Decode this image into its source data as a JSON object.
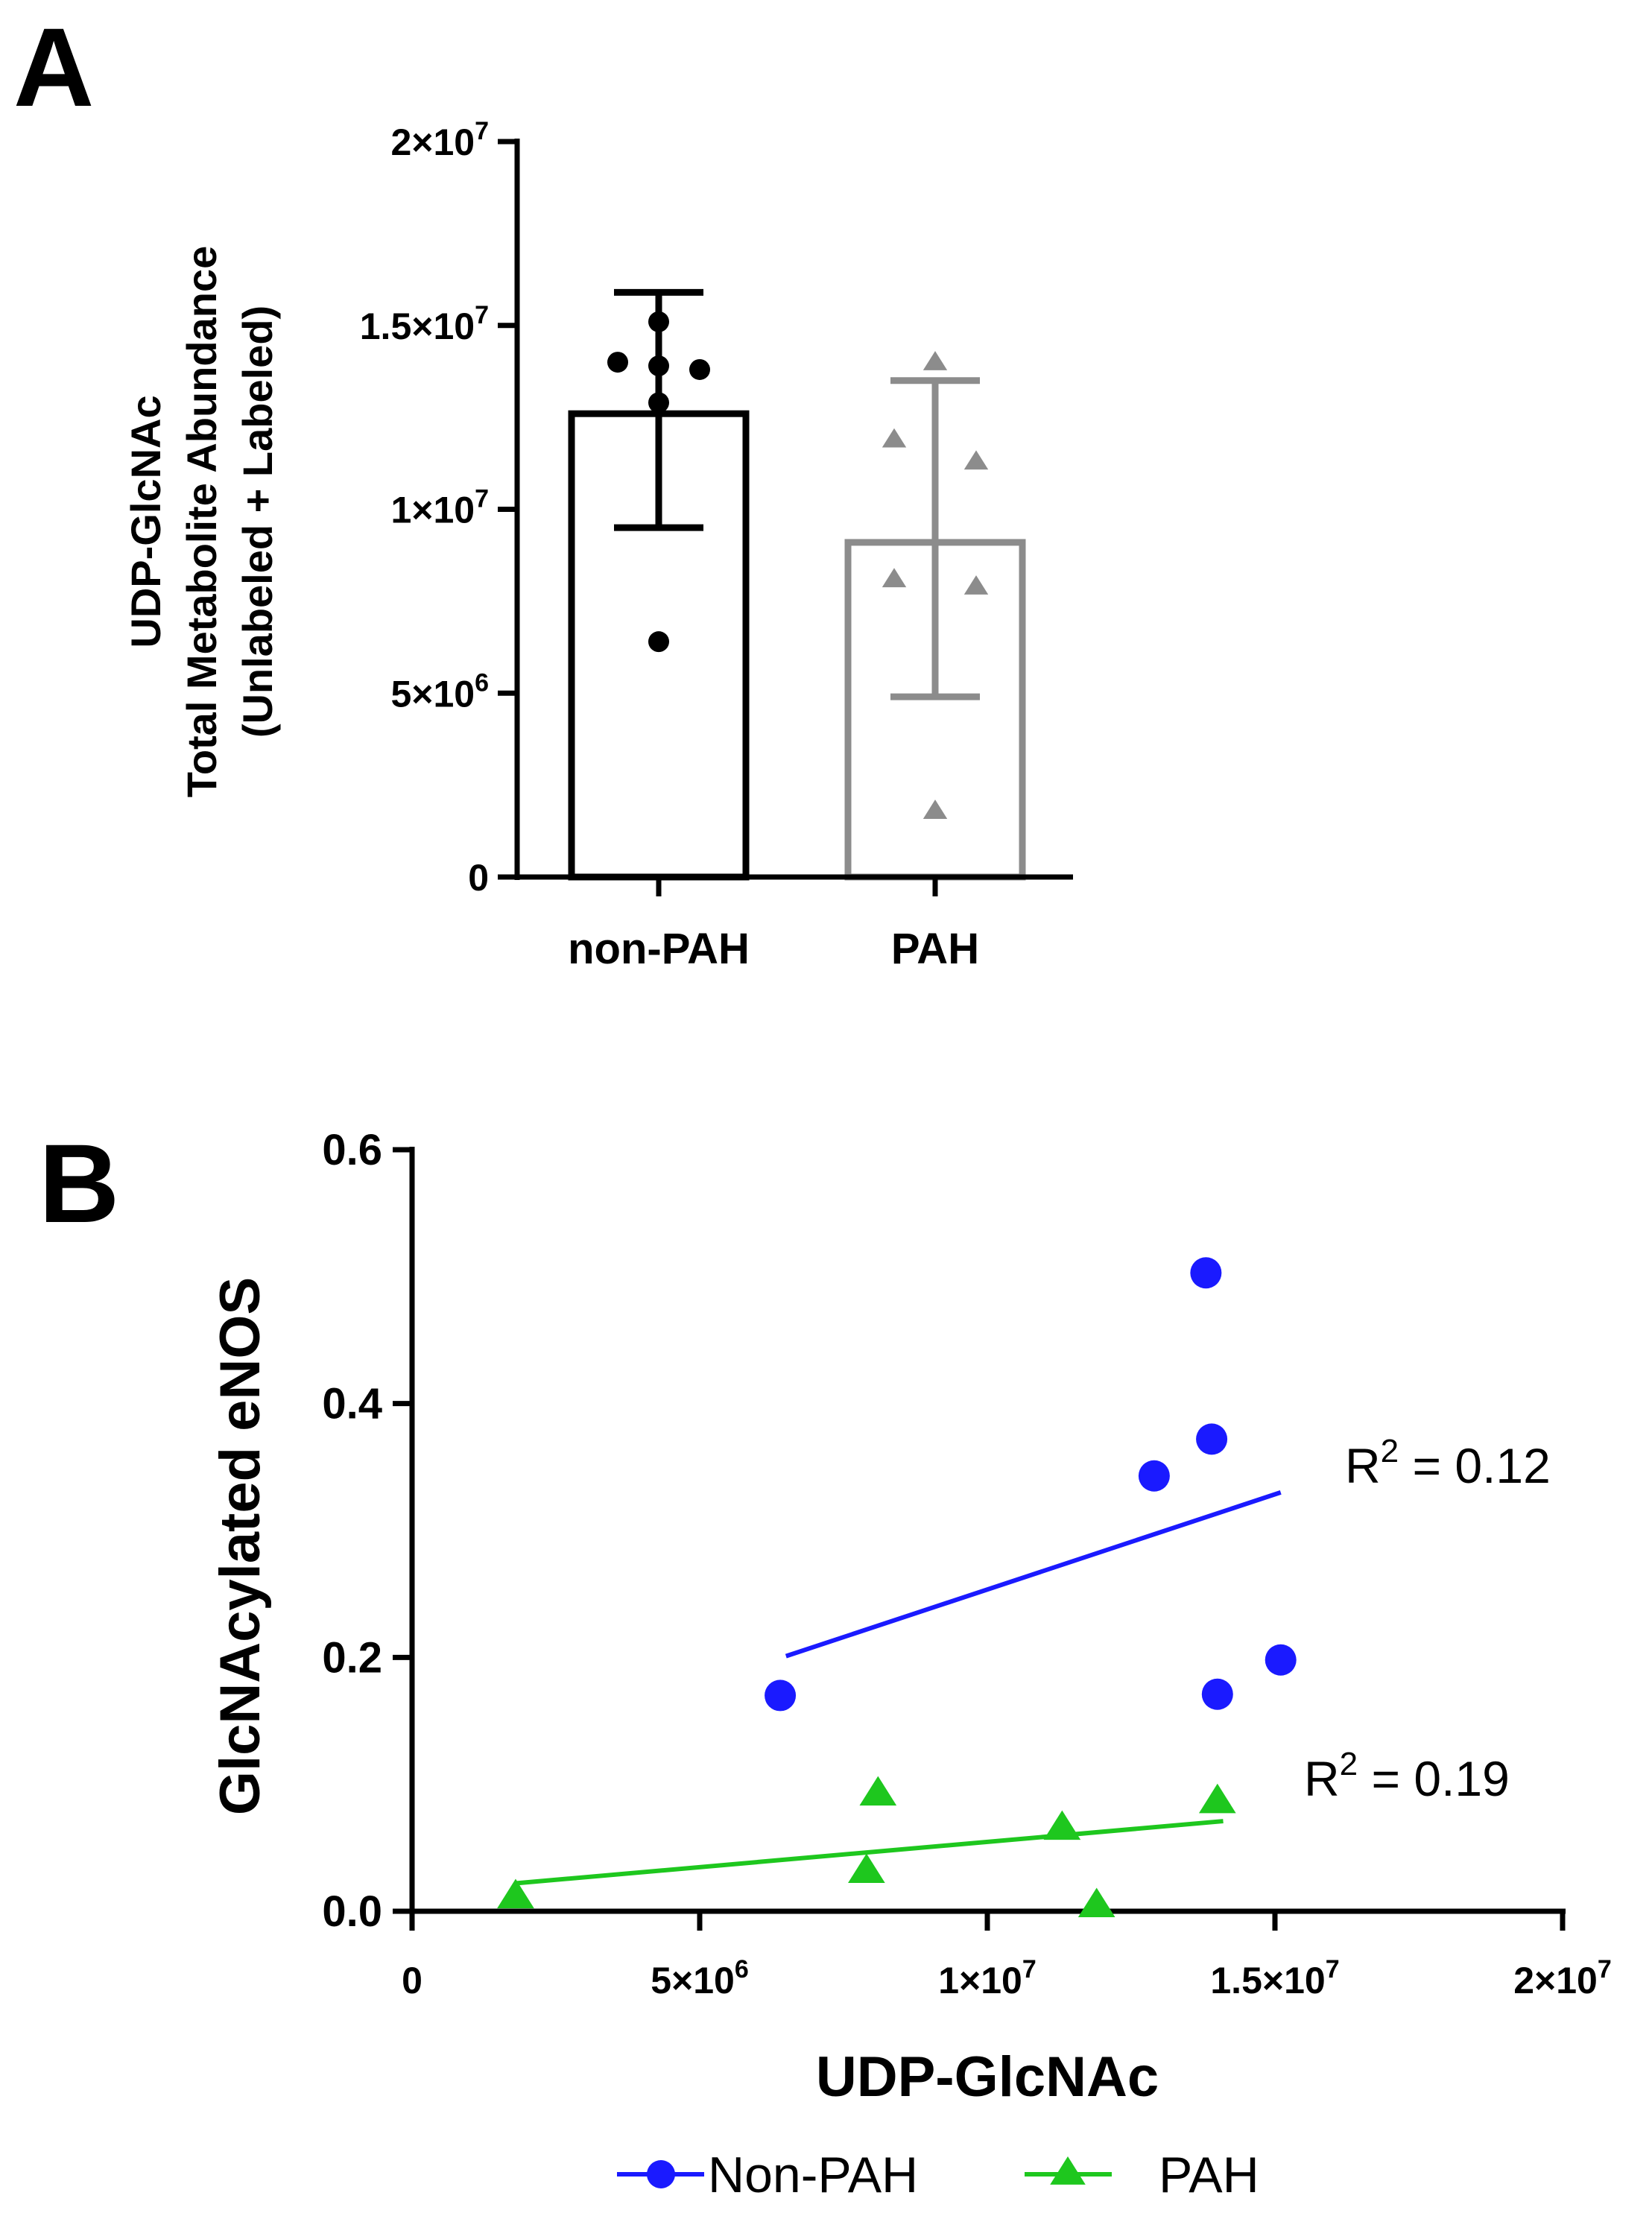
{
  "chart_data": [
    {
      "panel_label": "A",
      "type": "bar",
      "categories": [
        "non-PAH",
        "PAH"
      ],
      "ylabel_lines": [
        "UDP-GlcNAc",
        "Total Metabolite Abundance",
        "(Unlabeled +  Labeled)"
      ],
      "ylim": [
        0,
        20000000
      ],
      "yticks": [
        {
          "value": 0,
          "mant": "0",
          "exp": ""
        },
        {
          "value": 5000000,
          "mant": "5×10",
          "exp": "6"
        },
        {
          "value": 10000000,
          "mant": "1×10",
          "exp": "7"
        },
        {
          "value": 15000000,
          "mant": "1.5×10",
          "exp": "7"
        },
        {
          "value": 20000000,
          "mant": "2×10",
          "exp": "7"
        }
      ],
      "series": [
        {
          "name": "non-PAH",
          "color": "#000000",
          "marker": "circle",
          "mean": 12600000,
          "sd_low": 9500000,
          "sd_high": 15900000,
          "points": [
            {
              "dx": -0.35,
              "y": 14000000
            },
            {
              "dx": 0.0,
              "y": 15100000
            },
            {
              "dx": 0.0,
              "y": 13900000
            },
            {
              "dx": 0.35,
              "y": 13800000
            },
            {
              "dx": 0.0,
              "y": 12900000
            },
            {
              "dx": 0.0,
              "y": 6400000
            }
          ]
        },
        {
          "name": "PAH",
          "color": "#8c8c8c",
          "marker": "triangle",
          "mean": 9100000,
          "sd_low": 4900000,
          "sd_high": 13500000,
          "points": [
            {
              "dx": 0.0,
              "y": 14000000
            },
            {
              "dx": -0.35,
              "y": 11900000
            },
            {
              "dx": 0.35,
              "y": 11300000
            },
            {
              "dx": -0.35,
              "y": 8100000
            },
            {
              "dx": 0.35,
              "y": 7900000
            },
            {
              "dx": 0.0,
              "y": 1800000
            }
          ]
        }
      ]
    },
    {
      "panel_label": "B",
      "type": "scatter",
      "xlabel": "UDP-GlcNAc",
      "ylabel": "GlcNAcylated eNOS",
      "xlim": [
        0,
        20000000
      ],
      "ylim": [
        0,
        0.6
      ],
      "xticks": [
        {
          "value": 0,
          "mant": "0",
          "exp": ""
        },
        {
          "value": 5000000,
          "mant": "5×10",
          "exp": "6"
        },
        {
          "value": 10000000,
          "mant": "1×10",
          "exp": "7"
        },
        {
          "value": 15000000,
          "mant": "1.5×10",
          "exp": "7"
        },
        {
          "value": 20000000,
          "mant": "2×10",
          "exp": "7"
        }
      ],
      "yticks": [
        {
          "value": 0,
          "label": "0.0"
        },
        {
          "value": 0.2,
          "label": "0.2"
        },
        {
          "value": 0.4,
          "label": "0.4"
        },
        {
          "value": 0.6,
          "label": "0.6"
        }
      ],
      "series": [
        {
          "name": "Non-PAH",
          "color": "#1a1aff",
          "marker": "circle",
          "x": [
            6400000,
            12900000,
            13800000,
            13900000,
            14000000,
            15100000
          ],
          "y": [
            0.17,
            0.343,
            0.503,
            0.372,
            0.171,
            0.198
          ],
          "fit": {
            "x": [
              6500000,
              15100000
            ],
            "y": [
              0.201,
              0.33
            ]
          },
          "r2_label": "R",
          "r2_exp": "2",
          "r2_value": " = 0.12"
        },
        {
          "name": "PAH",
          "color": "#1ec71e",
          "marker": "triangle",
          "x": [
            1800000,
            7900000,
            8100000,
            11300000,
            11900000,
            14000000
          ],
          "y": [
            0.012,
            0.032,
            0.093,
            0.066,
            0.005,
            0.087
          ],
          "fit": {
            "x": [
              1800000,
              14100000
            ],
            "y": [
              0.022,
              0.071
            ]
          },
          "r2_label": "R",
          "r2_exp": "2",
          "r2_value": " = 0.19"
        }
      ],
      "legend": {
        "position": "bottom-center"
      }
    }
  ]
}
